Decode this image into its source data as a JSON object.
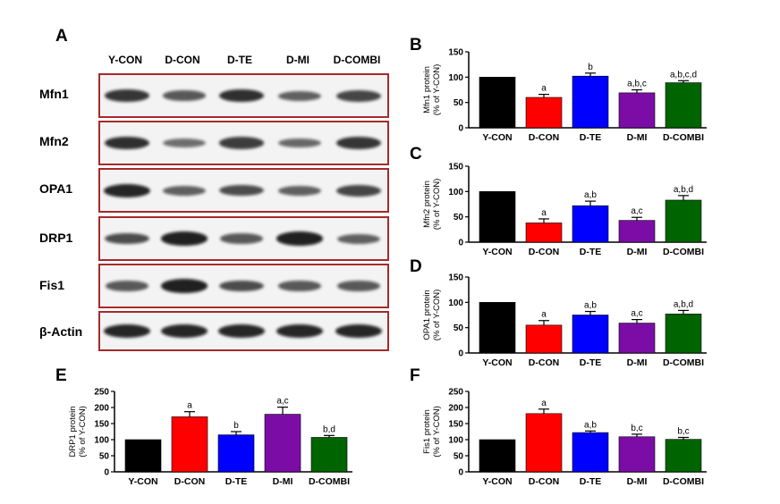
{
  "figure": {
    "panel_a": {
      "letter": "A",
      "lanes": [
        "Y-CON",
        "D-CON",
        "D-TE",
        "D-MI",
        "D-COMBI"
      ],
      "blots": [
        {
          "label": "Mfn1",
          "intensities": [
            0.8,
            0.55,
            0.85,
            0.5,
            0.7
          ]
        },
        {
          "label": "Mfn2",
          "intensities": [
            0.85,
            0.4,
            0.75,
            0.45,
            0.8
          ]
        },
        {
          "label": "OPA1",
          "intensities": [
            0.9,
            0.5,
            0.65,
            0.5,
            0.7
          ]
        },
        {
          "label": "DRP1",
          "intensities": [
            0.65,
            0.95,
            0.55,
            0.95,
            0.5
          ]
        },
        {
          "label": "Fis1",
          "intensities": [
            0.55,
            0.95,
            0.65,
            0.55,
            0.55
          ]
        },
        {
          "label": "β-Actin",
          "intensities": [
            0.9,
            0.9,
            0.9,
            0.9,
            0.9
          ]
        }
      ]
    }
  },
  "chart_data": [
    {
      "panel": "B",
      "type": "bar",
      "categories": [
        "Y-CON",
        "D-CON",
        "D-TE",
        "D-MI",
        "D-COMBI"
      ],
      "values": [
        100,
        60,
        102,
        69,
        89
      ],
      "errors": [
        0,
        6,
        6,
        6,
        4
      ],
      "annotations": [
        "",
        "a",
        "b",
        "a,b,c",
        "a,b,c,d"
      ],
      "ylabel": [
        "Mfn1 protein",
        "(% of Y-CON)"
      ],
      "ylim": [
        0,
        150
      ],
      "yticks": [
        0,
        50,
        100,
        150
      ],
      "colors": [
        "#000000",
        "#ff0000",
        "#0000ff",
        "#7b0da6",
        "#006400"
      ]
    },
    {
      "panel": "C",
      "type": "bar",
      "categories": [
        "Y-CON",
        "D-CON",
        "D-TE",
        "D-MI",
        "D-COMBI"
      ],
      "values": [
        100,
        38,
        72,
        43,
        83
      ],
      "errors": [
        0,
        8,
        9,
        6,
        9
      ],
      "annotations": [
        "",
        "a",
        "a,b",
        "a,c",
        "a,b,d"
      ],
      "ylabel": [
        "Mfn2 protein",
        "(% of Y-CON)"
      ],
      "ylim": [
        0,
        150
      ],
      "yticks": [
        0,
        50,
        100,
        150
      ],
      "colors": [
        "#000000",
        "#ff0000",
        "#0000ff",
        "#7b0da6",
        "#006400"
      ]
    },
    {
      "panel": "D",
      "type": "bar",
      "categories": [
        "Y-CON",
        "D-CON",
        "D-TE",
        "D-MI",
        "D-COMBI"
      ],
      "values": [
        100,
        55,
        75,
        59,
        77
      ],
      "errors": [
        0,
        9,
        7,
        7,
        7
      ],
      "annotations": [
        "",
        "a",
        "a,b",
        "a,c",
        "a,b,d"
      ],
      "ylabel": [
        "OPA1 protein",
        "(% of Y-CON)"
      ],
      "ylim": [
        0,
        150
      ],
      "yticks": [
        0,
        50,
        100,
        150
      ],
      "colors": [
        "#000000",
        "#ff0000",
        "#0000ff",
        "#7b0da6",
        "#006400"
      ]
    },
    {
      "panel": "E",
      "type": "bar",
      "categories": [
        "Y-CON",
        "D-CON",
        "D-TE",
        "D-MI",
        "D-COMBI"
      ],
      "values": [
        100,
        171,
        115,
        179,
        107
      ],
      "errors": [
        0,
        16,
        10,
        22,
        6
      ],
      "annotations": [
        "",
        "a",
        "b",
        "a,c",
        "b,d"
      ],
      "ylabel": [
        "DRP1 protein",
        "(% of Y-CON)"
      ],
      "ylim": [
        0,
        250
      ],
      "yticks": [
        0,
        50,
        100,
        150,
        200,
        250
      ],
      "colors": [
        "#000000",
        "#ff0000",
        "#0000ff",
        "#7b0da6",
        "#006400"
      ]
    },
    {
      "panel": "F",
      "type": "bar",
      "categories": [
        "Y-CON",
        "D-CON",
        "D-TE",
        "D-MI",
        "D-COMBI"
      ],
      "values": [
        100,
        181,
        122,
        109,
        101
      ],
      "errors": [
        0,
        14,
        5,
        8,
        6
      ],
      "annotations": [
        "",
        "a",
        "a,b",
        "b,c",
        "b,c"
      ],
      "ylabel": [
        "Fis1 protein",
        "(% of Y-CON)"
      ],
      "ylim": [
        0,
        250
      ],
      "yticks": [
        0,
        50,
        100,
        150,
        200,
        250
      ],
      "colors": [
        "#000000",
        "#ff0000",
        "#0000ff",
        "#7b0da6",
        "#006400"
      ]
    }
  ]
}
